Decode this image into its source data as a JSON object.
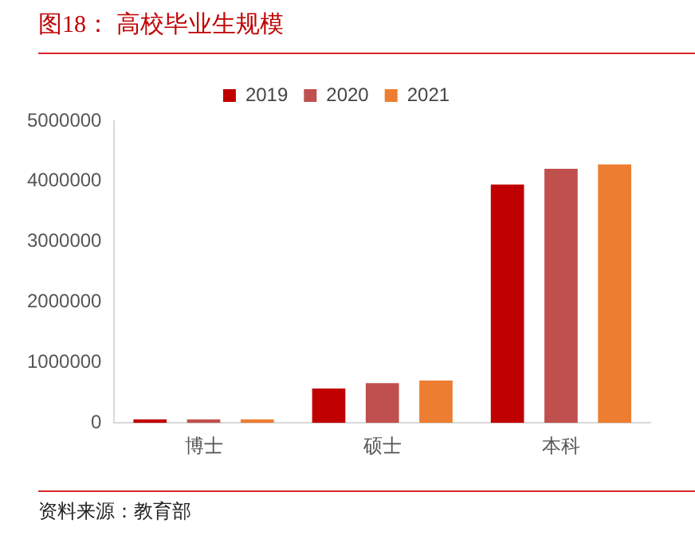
{
  "chart_data": {
    "type": "bar",
    "title": "图18：  高校毕业生规模",
    "categories": [
      "博士",
      "硕士",
      "本科"
    ],
    "series": [
      {
        "name": "2019",
        "color": "#c00000",
        "values": [
          60000,
          570000,
          3950000
        ]
      },
      {
        "name": "2020",
        "color": "#c0504d",
        "values": [
          60000,
          660000,
          4210000
        ]
      },
      {
        "name": "2021",
        "color": "#ed7d31",
        "values": [
          60000,
          700000,
          4280000
        ]
      }
    ],
    "ylim": [
      0,
      5000000
    ],
    "yticks": [
      0,
      1000000,
      2000000,
      3000000,
      4000000,
      5000000
    ],
    "grid": false,
    "legend": "top",
    "annotations": [
      "资料来源：教育部"
    ]
  }
}
